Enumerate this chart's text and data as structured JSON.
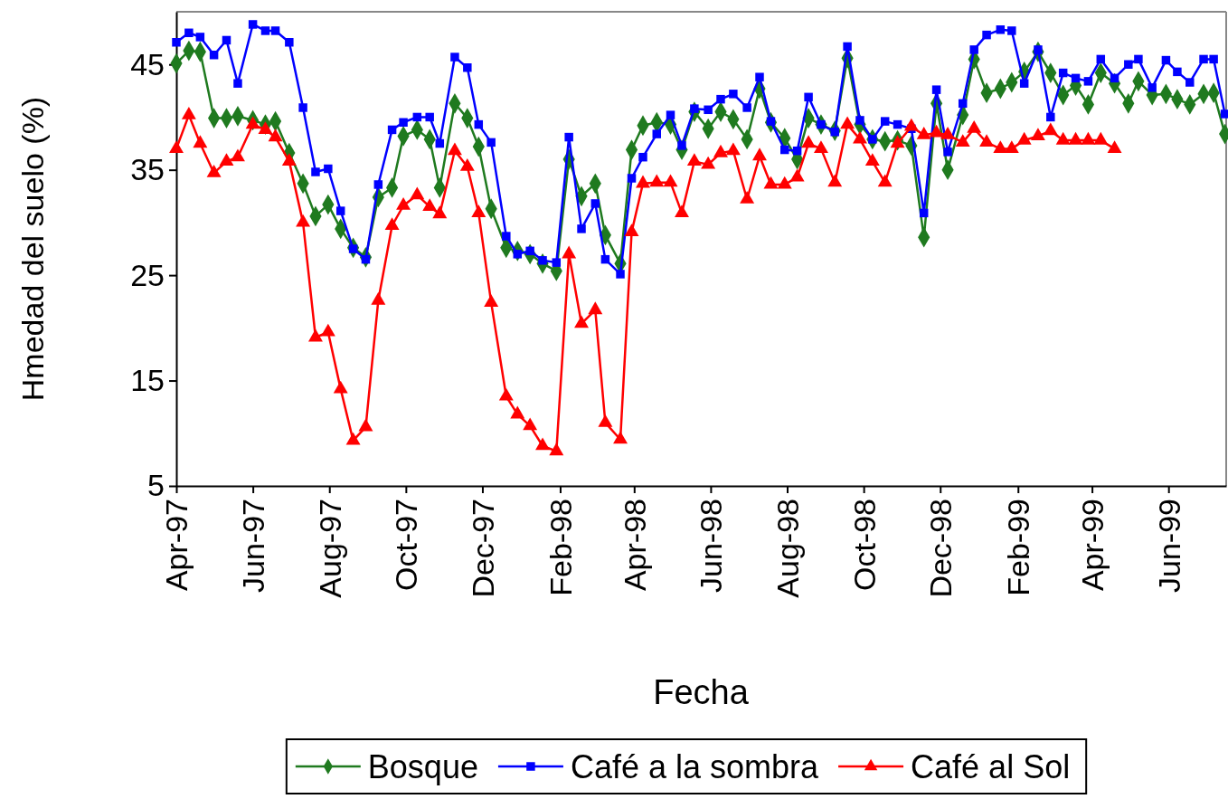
{
  "chart_data": {
    "type": "line",
    "xlabel": "Fecha",
    "ylabel": "Hmedad del suelo (%)",
    "legend": "bottom",
    "x": [
      "1997-04-01",
      "1997-04-11",
      "1997-04-20",
      "1997-05-01",
      "1997-05-11",
      "1997-05-20",
      "1997-06-01",
      "1997-06-11",
      "1997-06-19",
      "1997-06-30",
      "1997-07-11",
      "1997-07-21",
      "1997-07-31",
      "1997-08-10",
      "1997-08-20",
      "1997-08-30",
      "1997-09-09",
      "1997-09-20",
      "1997-09-29",
      "1997-10-10",
      "1997-10-20",
      "1997-10-28",
      "1997-11-09",
      "1997-11-19",
      "1997-11-28",
      "1997-12-08",
      "1997-12-20",
      "1997-12-29",
      "1998-01-08",
      "1998-01-18",
      "1998-01-29",
      "1998-02-08",
      "1998-02-18",
      "1998-03-01",
      "1998-03-09",
      "1998-03-21",
      "1998-03-30",
      "1998-04-08",
      "1998-04-19",
      "1998-04-30",
      "1998-05-09",
      "1998-05-19",
      "1998-05-30",
      "1998-06-09",
      "1998-06-19",
      "1998-06-30",
      "1998-07-10",
      "1998-07-19",
      "1998-07-30",
      "1998-08-09",
      "1998-08-18",
      "1998-08-28",
      "1998-09-08",
      "1998-09-18",
      "1998-09-28",
      "1998-10-08",
      "1998-10-18",
      "1998-10-28",
      "1998-11-08",
      "1998-11-18",
      "1998-11-28",
      "1998-12-07",
      "1998-12-19",
      "1998-12-28",
      "1999-01-07",
      "1999-01-18",
      "1999-01-27",
      "1999-02-06",
      "1999-02-17",
      "1999-02-27",
      "1999-03-09",
      "1999-03-19",
      "1999-03-29",
      "1999-04-08",
      "1999-04-19",
      "1999-04-30",
      "1999-05-08",
      "1999-05-19",
      "1999-05-30",
      "1999-06-08",
      "1999-06-18",
      "1999-06-29",
      "1999-07-07",
      "1999-07-16"
    ],
    "xlim": [
      "1997-04-01",
      "1999-07-17"
    ],
    "xticks": [
      {
        "value": "1997-04-01",
        "label": "Apr-97"
      },
      {
        "value": "1997-06-01",
        "label": "Jun-97"
      },
      {
        "value": "1997-08-01",
        "label": "Aug-97"
      },
      {
        "value": "1997-10-01",
        "label": "Oct-97"
      },
      {
        "value": "1997-12-01",
        "label": "Dec-97"
      },
      {
        "value": "1998-02-01",
        "label": "Feb-98"
      },
      {
        "value": "1998-04-01",
        "label": "Apr-98"
      },
      {
        "value": "1998-06-01",
        "label": "Jun-98"
      },
      {
        "value": "1998-08-01",
        "label": "Aug-98"
      },
      {
        "value": "1998-10-01",
        "label": "Oct-98"
      },
      {
        "value": "1998-12-01",
        "label": "Dec-98"
      },
      {
        "value": "1999-02-01",
        "label": "Feb-99"
      },
      {
        "value": "1999-04-01",
        "label": "Apr-99"
      },
      {
        "value": "1999-06-01",
        "label": "Jun-99"
      }
    ],
    "ylim": [
      5,
      50
    ],
    "yticks": [
      5,
      15,
      25,
      35,
      45
    ],
    "series": [
      {
        "name": "Bosque",
        "color": "#1f7a1f",
        "marker": "diamond",
        "values": [
          45.1,
          46.3,
          46.2,
          39.9,
          39.9,
          40.1,
          39.7,
          39.3,
          39.6,
          36.6,
          33.7,
          30.6,
          31.7,
          29.4,
          27.6,
          26.7,
          32.4,
          33.3,
          38.2,
          38.8,
          37.9,
          33.3,
          41.3,
          39.9,
          37.2,
          31.3,
          27.6,
          27.3,
          27.0,
          26.1,
          25.4,
          36.0,
          32.5,
          33.7,
          28.8,
          26.1,
          36.9,
          39.2,
          39.5,
          39.3,
          36.9,
          40.5,
          38.9,
          40.5,
          39.8,
          37.9,
          42.7,
          39.5,
          38.0,
          36.0,
          39.9,
          39.3,
          38.7,
          45.6,
          39.3,
          37.9,
          37.7,
          37.8,
          37.3,
          28.6,
          41.3,
          35.0,
          40.2,
          45.5,
          42.3,
          42.7,
          43.3,
          44.3,
          46.2,
          44.2,
          42.1,
          43.0,
          41.2,
          44.2,
          43.2,
          41.3,
          43.4,
          42.1,
          42.2,
          41.7,
          41.2,
          42.2,
          42.3,
          38.4
        ]
      },
      {
        "name": "Café a la sombra",
        "color": "#0000ff",
        "marker": "square",
        "values": [
          47.1,
          48.0,
          47.6,
          45.9,
          47.3,
          43.2,
          48.8,
          48.2,
          48.2,
          47.1,
          40.9,
          34.8,
          35.1,
          31.1,
          27.5,
          26.5,
          33.6,
          38.8,
          39.5,
          40.0,
          40.0,
          37.5,
          45.7,
          44.7,
          39.3,
          37.6,
          28.7,
          27.0,
          27.3,
          26.4,
          26.2,
          38.1,
          29.4,
          31.8,
          26.5,
          25.1,
          34.2,
          36.2,
          38.4,
          40.2,
          37.3,
          40.8,
          40.7,
          41.7,
          42.2,
          40.9,
          43.8,
          39.6,
          36.9,
          36.8,
          41.9,
          39.3,
          38.6,
          46.7,
          39.7,
          37.9,
          39.6,
          39.3,
          38.9,
          30.9,
          42.6,
          36.7,
          41.3,
          46.4,
          47.8,
          48.3,
          48.2,
          43.2,
          46.4,
          40.0,
          44.2,
          43.7,
          43.4,
          45.5,
          43.7,
          45.0,
          45.5,
          42.8,
          45.4,
          44.3,
          43.3,
          45.5,
          45.5,
          40.3
        ]
      },
      {
        "name": "Café al Sol",
        "color": "#ff0000",
        "marker": "triangle",
        "values": [
          37.0,
          40.2,
          37.5,
          34.7,
          35.8,
          36.2,
          39.3,
          38.8,
          38.1,
          35.8,
          30.0,
          19.1,
          19.6,
          14.2,
          9.3,
          10.6,
          22.6,
          29.7,
          31.6,
          32.6,
          31.5,
          30.8,
          36.8,
          35.3,
          30.9,
          22.4,
          13.5,
          11.8,
          10.7,
          8.8,
          8.3,
          27.0,
          20.4,
          21.7,
          11.0,
          9.4,
          29.1,
          33.7,
          33.8,
          33.8,
          30.9,
          35.8,
          35.5,
          36.6,
          36.8,
          32.2,
          36.3,
          33.6,
          33.6,
          34.3,
          37.5,
          37.0,
          33.8,
          39.3,
          37.9,
          35.8,
          33.8,
          37.5,
          39.1,
          38.3,
          38.5,
          38.3,
          37.6,
          38.9,
          37.6,
          37.0,
          37.0,
          37.8,
          38.2,
          38.7,
          37.8,
          37.8,
          37.8,
          37.8,
          37.0,
          null,
          null,
          null,
          null,
          null,
          null,
          null,
          null,
          null
        ]
      }
    ]
  }
}
